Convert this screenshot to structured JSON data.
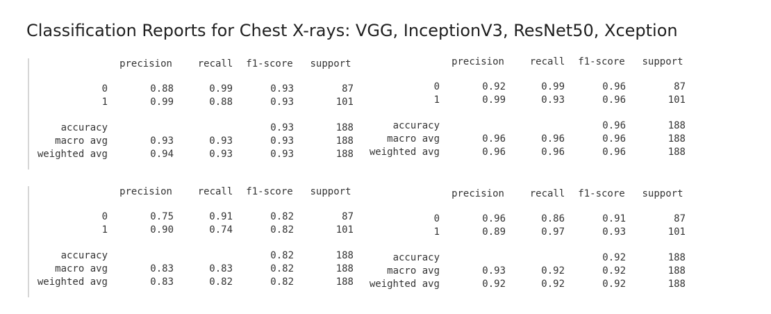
{
  "title": "Classification Reports for Chest X-rays: VGG, InceptionV3, ResNet50, Xception",
  "reports": [
    {
      "headers": [
        "precision",
        "recall",
        "f1-score",
        "support"
      ],
      "rows": [
        {
          "label": "0",
          "precision": "0.88",
          "recall": "0.99",
          "f1": "0.93",
          "support": "87"
        },
        {
          "label": "1",
          "precision": "0.99",
          "recall": "0.88",
          "f1": "0.93",
          "support": "101"
        },
        {
          "label": "accuracy",
          "precision": "",
          "recall": "",
          "f1": "0.93",
          "support": "188"
        },
        {
          "label": "macro avg",
          "precision": "0.93",
          "recall": "0.93",
          "f1": "0.93",
          "support": "188"
        },
        {
          "label": "weighted avg",
          "precision": "0.94",
          "recall": "0.93",
          "f1": "0.93",
          "support": "188"
        }
      ]
    },
    {
      "headers": [
        "precision",
        "recall",
        "f1-score",
        "support"
      ],
      "rows": [
        {
          "label": "0",
          "precision": "0.92",
          "recall": "0.99",
          "f1": "0.96",
          "support": "87"
        },
        {
          "label": "1",
          "precision": "0.99",
          "recall": "0.93",
          "f1": "0.96",
          "support": "101"
        },
        {
          "label": "accuracy",
          "precision": "",
          "recall": "",
          "f1": "0.96",
          "support": "188"
        },
        {
          "label": "macro avg",
          "precision": "0.96",
          "recall": "0.96",
          "f1": "0.96",
          "support": "188"
        },
        {
          "label": "weighted avg",
          "precision": "0.96",
          "recall": "0.96",
          "f1": "0.96",
          "support": "188"
        }
      ]
    },
    {
      "headers": [
        "precision",
        "recall",
        "f1-score",
        "support"
      ],
      "rows": [
        {
          "label": "0",
          "precision": "0.75",
          "recall": "0.91",
          "f1": "0.82",
          "support": "87"
        },
        {
          "label": "1",
          "precision": "0.90",
          "recall": "0.74",
          "f1": "0.82",
          "support": "101"
        },
        {
          "label": "accuracy",
          "precision": "",
          "recall": "",
          "f1": "0.82",
          "support": "188"
        },
        {
          "label": "macro avg",
          "precision": "0.83",
          "recall": "0.83",
          "f1": "0.82",
          "support": "188"
        },
        {
          "label": "weighted avg",
          "precision": "0.83",
          "recall": "0.82",
          "f1": "0.82",
          "support": "188"
        }
      ]
    },
    {
      "headers": [
        "precision",
        "recall",
        "f1-score",
        "support"
      ],
      "rows": [
        {
          "label": "0",
          "precision": "0.96",
          "recall": "0.86",
          "f1": "0.91",
          "support": "87"
        },
        {
          "label": "1",
          "precision": "0.89",
          "recall": "0.97",
          "f1": "0.93",
          "support": "101"
        },
        {
          "label": "accuracy",
          "precision": "",
          "recall": "",
          "f1": "0.92",
          "support": "188"
        },
        {
          "label": "macro avg",
          "precision": "0.93",
          "recall": "0.92",
          "f1": "0.92",
          "support": "188"
        },
        {
          "label": "weighted avg",
          "precision": "0.92",
          "recall": "0.92",
          "f1": "0.92",
          "support": "188"
        }
      ]
    }
  ]
}
